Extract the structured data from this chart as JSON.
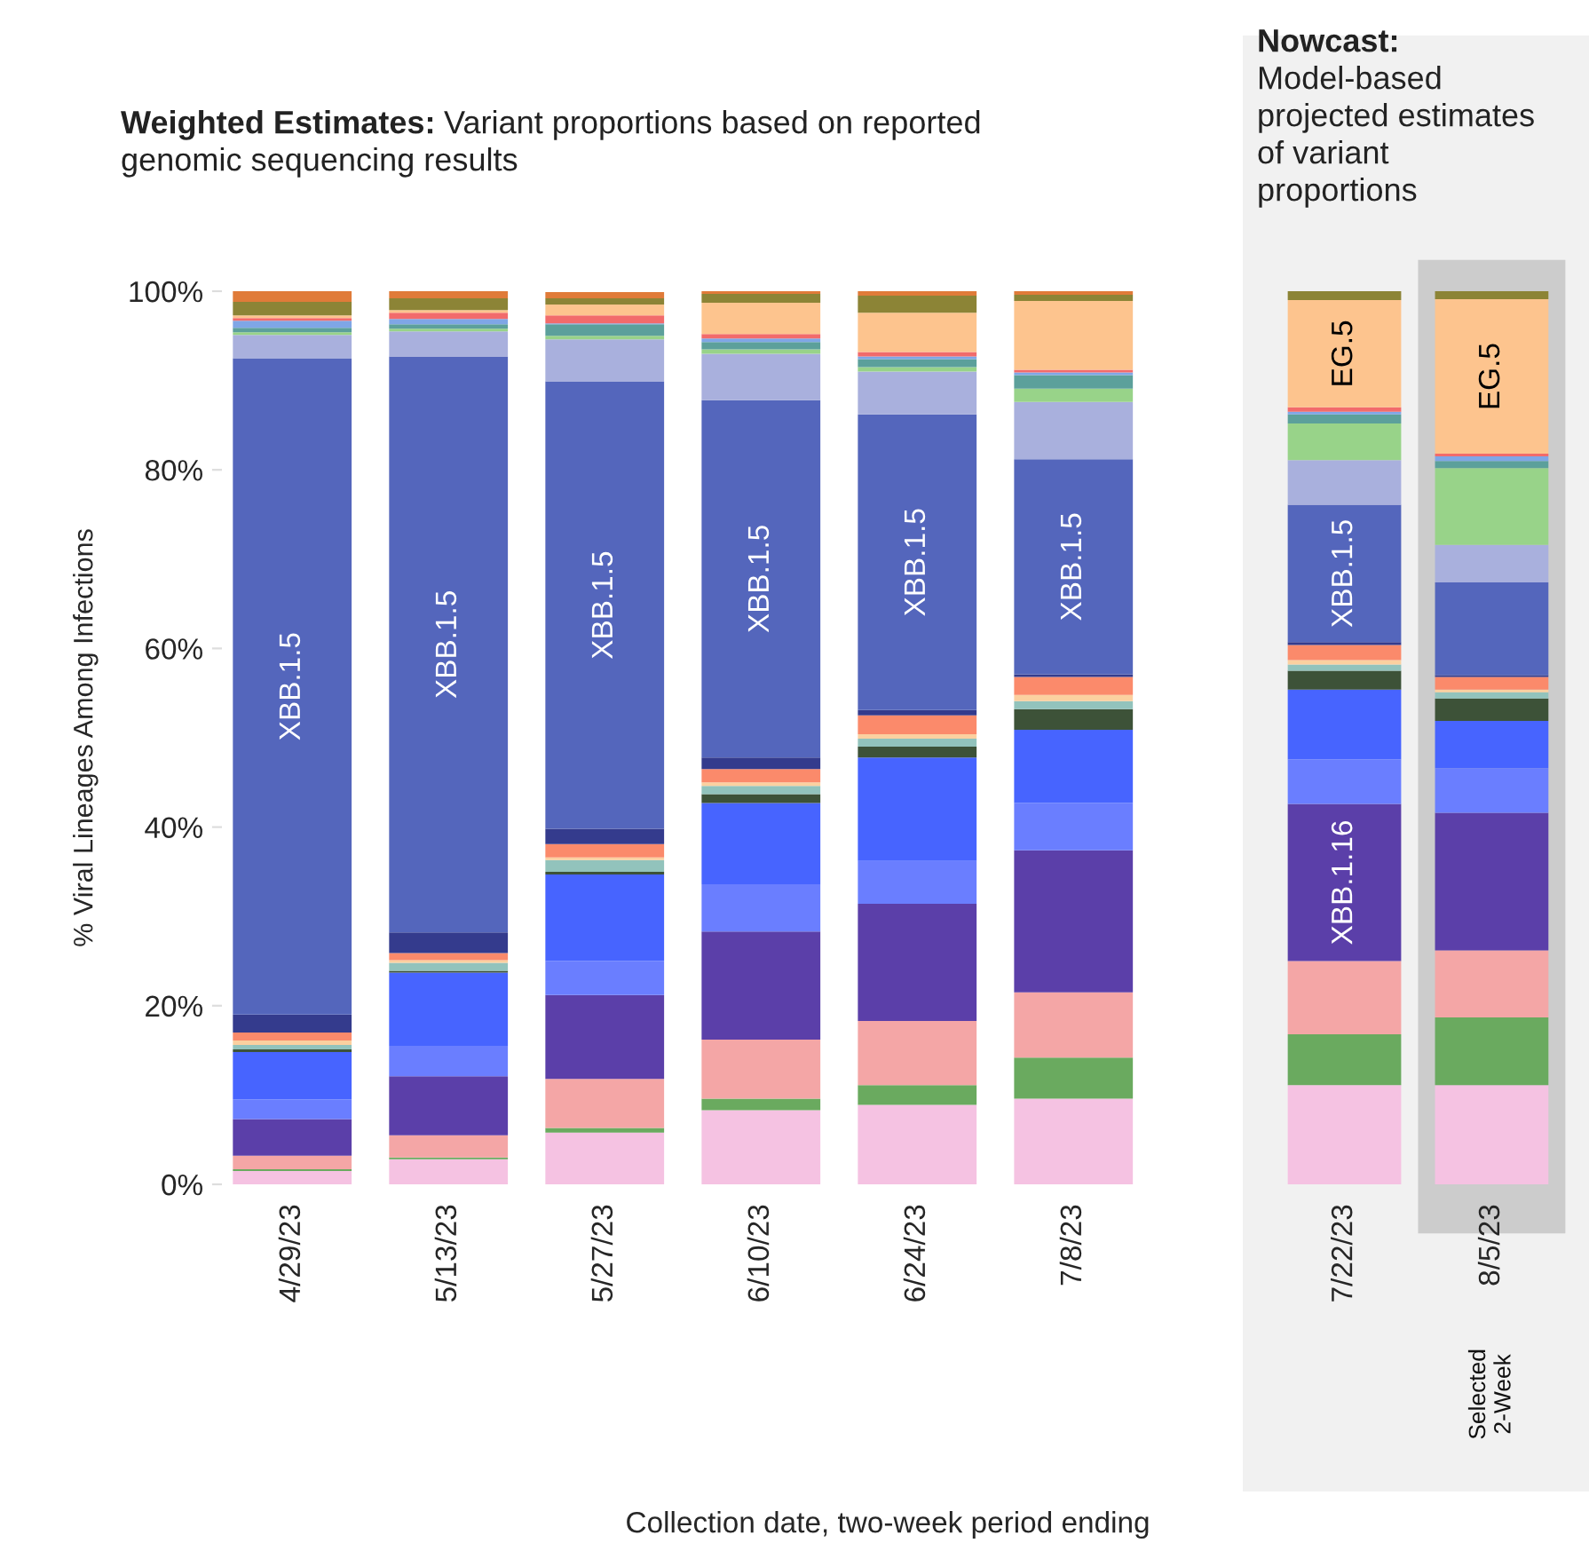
{
  "chart_data": [
    {
      "type": "bar",
      "stacked": true,
      "title": "Weighted Estimates:",
      "subtitle": "Variant proportions based on reported genomic sequencing results",
      "xlabel": "Collection date, two-week period ending",
      "ylabel": "% Viral Lineages Among Infections",
      "categories": [
        "4/29/23",
        "5/13/23",
        "5/27/23",
        "6/10/23",
        "6/24/23",
        "7/8/23"
      ],
      "ylim": [
        0,
        100
      ],
      "yticks": [
        {
          "value": 0,
          "label": "0%"
        },
        {
          "value": 20,
          "label": "20%"
        },
        {
          "value": 40,
          "label": "40%"
        },
        {
          "value": 60,
          "label": "60%"
        },
        {
          "value": 80,
          "label": "80%"
        },
        {
          "value": 100,
          "label": "100%"
        }
      ],
      "grid": false,
      "series": [
        {
          "color": "#f5c2e2",
          "values": [
            1.5,
            2.8,
            5.8,
            8.3,
            8.9,
            9.6
          ]
        },
        {
          "color": "#6aaa5f",
          "values": [
            0.2,
            0.2,
            0.5,
            1.3,
            2.2,
            4.6
          ]
        },
        {
          "color": "#f4a6a6",
          "values": [
            1.5,
            2.5,
            5.5,
            6.6,
            7.2,
            7.3
          ]
        },
        {
          "color": "#5b3fa9",
          "values": [
            4.1,
            6.6,
            9.4,
            12.1,
            13.1,
            15.9
          ]
        },
        {
          "color": "#6a7eff",
          "values": [
            2.2,
            3.4,
            3.8,
            5.3,
            4.8,
            5.3
          ]
        },
        {
          "color": "#4764ff",
          "values": [
            5.3,
            8.2,
            9.7,
            9.1,
            11.6,
            8.2
          ]
        },
        {
          "color": "#3d5238",
          "values": [
            0.3,
            0.2,
            0.3,
            1.0,
            1.2,
            2.3
          ]
        },
        {
          "color": "#92c3bc",
          "values": [
            0.5,
            0.9,
            1.3,
            0.9,
            0.9,
            0.9
          ]
        },
        {
          "color": "#fbd0a0",
          "values": [
            0.5,
            0.3,
            0.3,
            0.4,
            0.5,
            0.7
          ]
        },
        {
          "color": "#fb8a6b",
          "values": [
            0.9,
            0.8,
            1.5,
            1.5,
            2.1,
            2.0
          ]
        },
        {
          "color": "#343b8d",
          "values": [
            2.0,
            2.3,
            1.7,
            1.3,
            0.6,
            0.3
          ]
        },
        {
          "color": "#5466bc",
          "values": [
            73.5,
            64.5,
            50.1,
            40.0,
            33.1,
            24.1
          ],
          "value_labels": [
            "XBB.1.5",
            "XBB.1.5",
            "XBB.1.5",
            "XBB.1.5",
            "XBB.1.5",
            "XBB.1.5"
          ]
        },
        {
          "color": "#a9b0dd",
          "values": [
            2.6,
            2.8,
            4.7,
            5.2,
            4.8,
            6.4
          ]
        },
        {
          "color": "#98d389",
          "values": [
            0.3,
            0.3,
            0.4,
            0.5,
            0.5,
            1.5
          ]
        },
        {
          "color": "#5ca09b",
          "values": [
            0.5,
            0.5,
            1.3,
            0.8,
            0.9,
            1.5
          ]
        },
        {
          "color": "#7fa6e6",
          "values": [
            0.8,
            0.6,
            0.1,
            0.4,
            0.3,
            0.3
          ]
        },
        {
          "color": "#f26b6b",
          "values": [
            0.3,
            0.7,
            0.9,
            0.5,
            0.5,
            0.3
          ]
        },
        {
          "color": "#fdc48e",
          "values": [
            0.3,
            0.3,
            1.2,
            3.5,
            4.4,
            7.7
          ]
        },
        {
          "color": "#8c8436",
          "values": [
            1.5,
            1.3,
            0.7,
            1.0,
            1.9,
            0.7
          ]
        },
        {
          "color": "#e07b39",
          "values": [
            1.2,
            0.8,
            0.7,
            0.4,
            0.5,
            0.4
          ]
        }
      ],
      "legend": false
    },
    {
      "type": "bar",
      "stacked": true,
      "title": "Nowcast:",
      "subtitle": "Model-based projected estimates of variant proportions",
      "categories": [
        "7/22/23",
        "8/5/23"
      ],
      "ylim": [
        0,
        100
      ],
      "tick_labels": "x",
      "grid": false,
      "legend": false,
      "bands": [
        {
          "axis": "x",
          "from": "8/5/23",
          "to": "8/5/23",
          "color": "#cccccc"
        }
      ],
      "series": [
        {
          "color": "#f5c2e2",
          "values": [
            11.1,
            11.1
          ]
        },
        {
          "color": "#6aaa5f",
          "values": [
            5.7,
            7.6
          ]
        },
        {
          "color": "#f4a6a6",
          "values": [
            8.2,
            7.5
          ]
        },
        {
          "color": "#5b3fa9",
          "values": [
            17.6,
            15.4
          ],
          "value_labels": [
            "XBB.1.16",
            null
          ]
        },
        {
          "color": "#6a7eff",
          "values": [
            5.0,
            5.0
          ]
        },
        {
          "color": "#4764ff",
          "values": [
            7.8,
            5.3
          ]
        },
        {
          "color": "#3d5238",
          "values": [
            2.1,
            2.5
          ]
        },
        {
          "color": "#92c3bc",
          "values": [
            0.7,
            0.7
          ]
        },
        {
          "color": "#fbd0a0",
          "values": [
            0.5,
            0.3
          ]
        },
        {
          "color": "#fb8a6b",
          "values": [
            1.7,
            1.4
          ]
        },
        {
          "color": "#343b8d",
          "values": [
            0.3,
            0.2
          ]
        },
        {
          "color": "#5466bc",
          "values": [
            15.4,
            10.4
          ],
          "value_labels": [
            "XBB.1.5",
            null
          ]
        },
        {
          "color": "#a9b0dd",
          "values": [
            5.0,
            4.2
          ]
        },
        {
          "color": "#98d389",
          "values": [
            4.1,
            8.6
          ]
        },
        {
          "color": "#5ca09b",
          "values": [
            1.0,
            0.8
          ]
        },
        {
          "color": "#7fa6e6",
          "values": [
            0.3,
            0.5
          ]
        },
        {
          "color": "#f26b6b",
          "values": [
            0.5,
            0.3
          ]
        },
        {
          "color": "#fdc48e",
          "values": [
            12.0,
            17.3
          ],
          "value_labels": [
            "EG.5",
            "EG.5"
          ]
        },
        {
          "color": "#8c8436",
          "values": [
            1.0,
            0.9
          ]
        },
        {
          "color": "#e07b39",
          "values": [
            null,
            null
          ]
        }
      ],
      "annotations": [
        "Selected 2-Week"
      ]
    }
  ]
}
